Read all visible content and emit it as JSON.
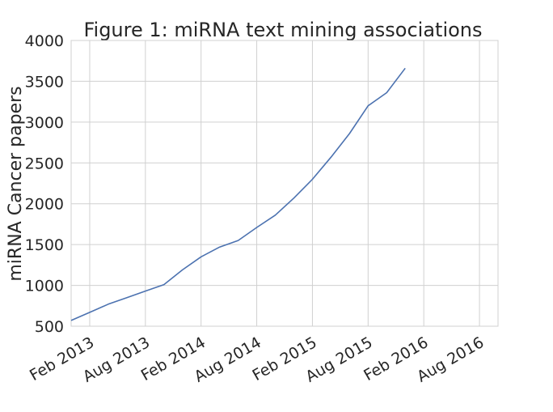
{
  "chart_data": {
    "type": "line",
    "title": "Figure 1: miRNA text mining associations",
    "xlabel": "",
    "ylabel": "miRNA Cancer papers",
    "x_ticks": [
      "Feb 2013",
      "Aug 2013",
      "Feb 2014",
      "Aug 2014",
      "Feb 2015",
      "Aug 2015",
      "Feb 2016",
      "Aug 2016"
    ],
    "xlim": [
      "2012-12",
      "2016-10"
    ],
    "ylim": [
      500,
      4000
    ],
    "y_ticks": [
      500,
      1000,
      1500,
      2000,
      2500,
      3000,
      3500,
      4000
    ],
    "grid": true,
    "series": [
      {
        "color": "#4c72b0",
        "points": [
          {
            "x": "2012-12",
            "y": 570
          },
          {
            "x": "2013-02",
            "y": 670
          },
          {
            "x": "2013-04",
            "y": 770
          },
          {
            "x": "2013-06",
            "y": 850
          },
          {
            "x": "2013-08",
            "y": 930
          },
          {
            "x": "2013-10",
            "y": 1010
          },
          {
            "x": "2013-12",
            "y": 1190
          },
          {
            "x": "2014-02",
            "y": 1350
          },
          {
            "x": "2014-04",
            "y": 1470
          },
          {
            "x": "2014-06",
            "y": 1550
          },
          {
            "x": "2014-08",
            "y": 1710
          },
          {
            "x": "2014-10",
            "y": 1860
          },
          {
            "x": "2014-12",
            "y": 2070
          },
          {
            "x": "2015-02",
            "y": 2300
          },
          {
            "x": "2015-04",
            "y": 2570
          },
          {
            "x": "2015-06",
            "y": 2860
          },
          {
            "x": "2015-08",
            "y": 3200
          },
          {
            "x": "2015-10",
            "y": 3360
          },
          {
            "x": "2015-12",
            "y": 3660
          }
        ]
      }
    ]
  }
}
